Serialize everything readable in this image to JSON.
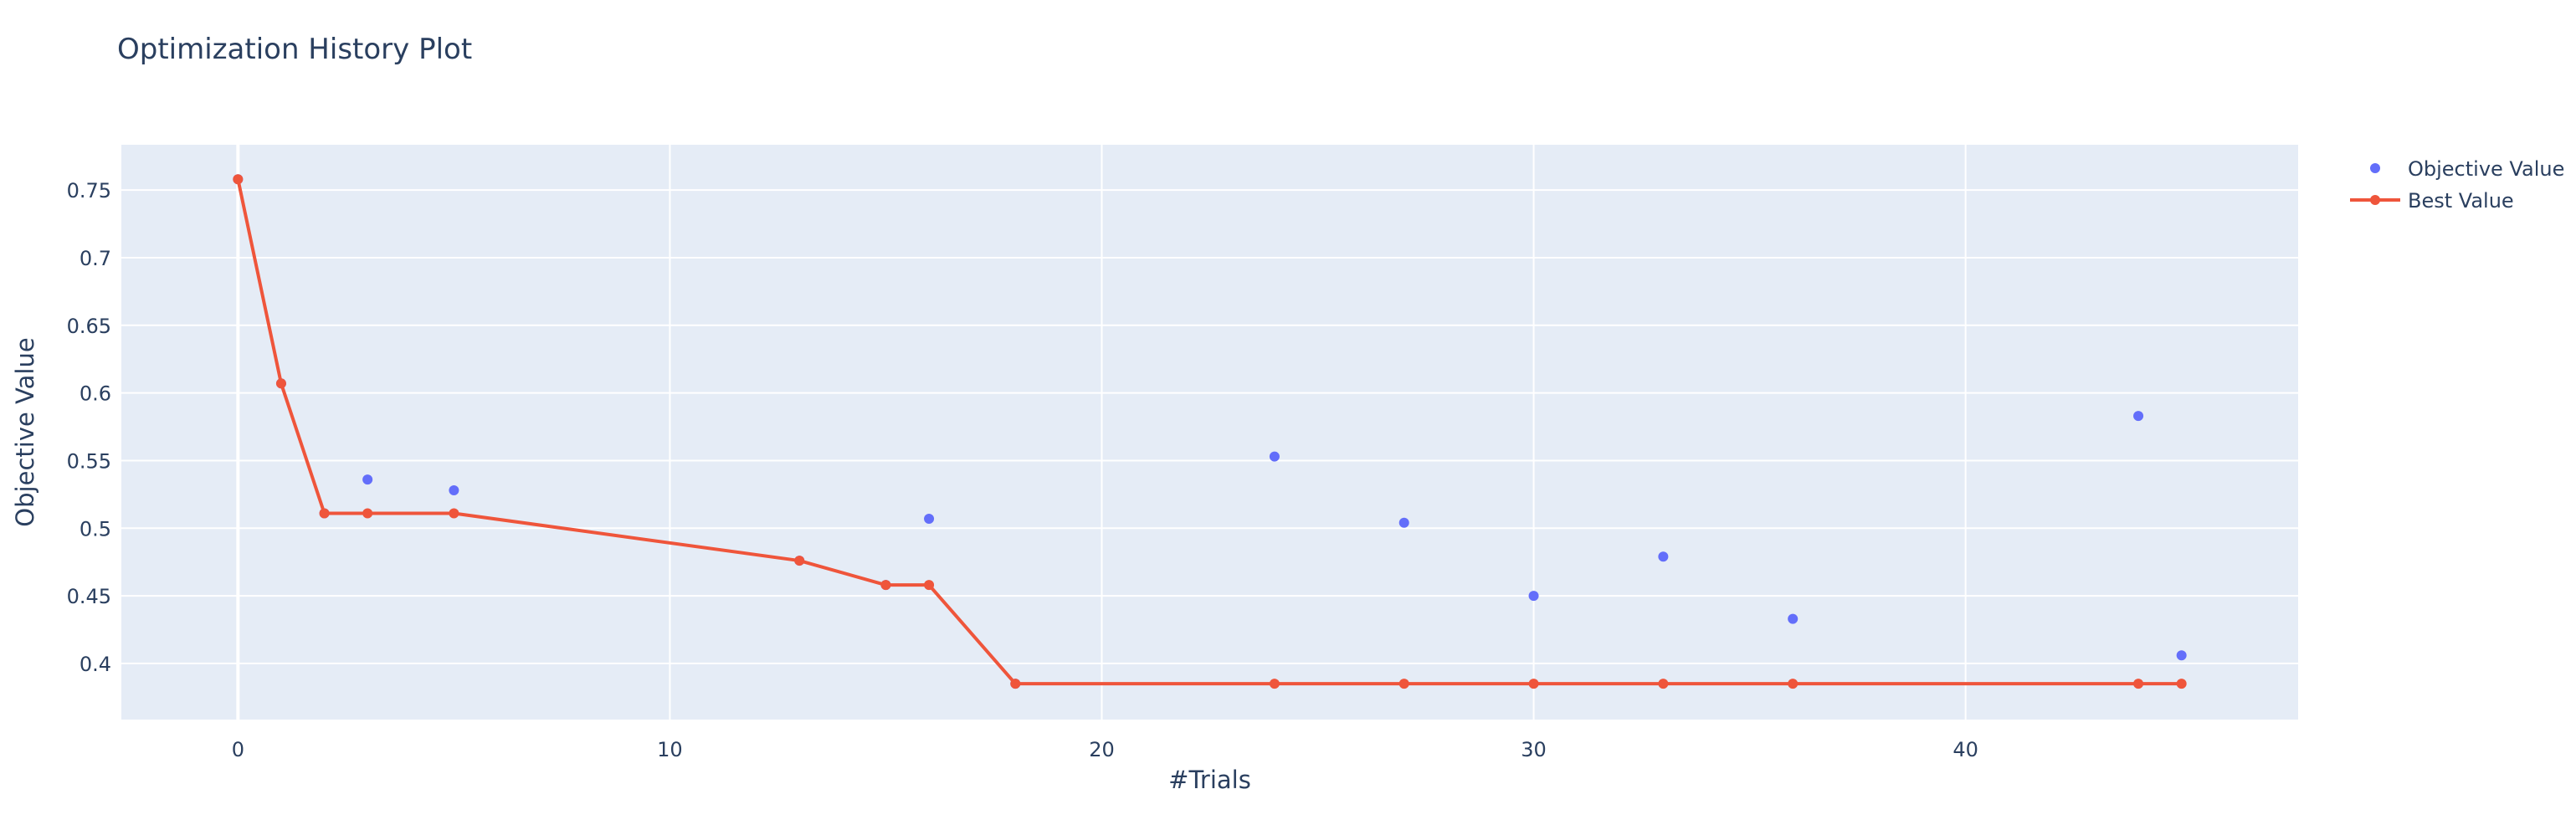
{
  "chart_data": {
    "type": "scatter",
    "title": "Optimization History Plot",
    "xlabel": "#Trials",
    "ylabel": "Objective Value",
    "xlim": [
      -2.7,
      47.7
    ],
    "ylim": [
      0.3585,
      0.7835
    ],
    "x_ticks": [
      0,
      10,
      20,
      30,
      40
    ],
    "y_ticks": [
      0.4,
      0.45,
      0.5,
      0.55,
      0.6,
      0.65,
      0.7,
      0.75
    ],
    "x_tick_labels": [
      "0",
      "10",
      "20",
      "30",
      "40"
    ],
    "y_tick_labels": [
      "0.4",
      "0.45",
      "0.5",
      "0.55",
      "0.6",
      "0.65",
      "0.7",
      "0.75"
    ],
    "grid": true,
    "legend_position": "top-right",
    "series": [
      {
        "name": "Objective Value",
        "mode": "markers",
        "color": "#636efa",
        "x": [
          0,
          1,
          2,
          3,
          5,
          13,
          15,
          16,
          18,
          24,
          27,
          30,
          33,
          36,
          44,
          45
        ],
        "y": [
          0.758,
          0.607,
          0.511,
          0.536,
          0.528,
          0.476,
          0.458,
          0.507,
          0.385,
          0.553,
          0.504,
          0.45,
          0.479,
          0.433,
          0.583,
          0.406
        ]
      },
      {
        "name": "Best Value",
        "mode": "lines+markers",
        "color": "#ef553b",
        "x": [
          0,
          1,
          2,
          3,
          5,
          13,
          15,
          16,
          18,
          24,
          27,
          30,
          33,
          36,
          44,
          45
        ],
        "y": [
          0.758,
          0.607,
          0.511,
          0.511,
          0.511,
          0.476,
          0.458,
          0.458,
          0.385,
          0.385,
          0.385,
          0.385,
          0.385,
          0.385,
          0.385,
          0.385
        ]
      }
    ]
  },
  "colors": {
    "plot_background": "#e5ecf6",
    "grid": "#ffffff",
    "text": "#2a3f5f"
  }
}
